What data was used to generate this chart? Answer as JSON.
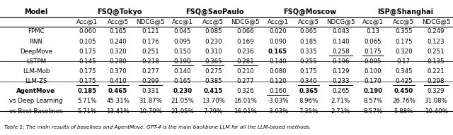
{
  "dataset_headers": [
    "FSQ@Tokyo",
    "FSQ@SaoPaulo",
    "FSQ@Moscow",
    "ISP@Shanghai"
  ],
  "rows": [
    {
      "model": "FPMC",
      "vals": [
        "0.060",
        "0.165",
        "0.121",
        "0.045",
        "0.085",
        "0.066",
        "0.020",
        "0.065",
        "0.043",
        "0.13",
        "0.355",
        "0.249"
      ],
      "bold_model": false,
      "bold_vals": [],
      "underline_vals": [],
      "group": 0
    },
    {
      "model": "RNN",
      "vals": [
        "0.105",
        "0.240",
        "0.176",
        "0.095",
        "0.230",
        "0.169",
        "0.090",
        "0.185",
        "0.140",
        "0.065",
        "0.175",
        "0.123"
      ],
      "bold_model": false,
      "bold_vals": [],
      "underline_vals": [],
      "group": 0
    },
    {
      "model": "DeepMove",
      "vals": [
        "0.175",
        "0.320",
        "0.251",
        "0.150",
        "0.310",
        "0.236",
        "0.165",
        "0.335",
        "0.258",
        "0.175",
        "0.320",
        "0.251"
      ],
      "bold_model": false,
      "bold_vals": [
        6
      ],
      "underline_vals": [
        8,
        9
      ],
      "group": 0
    },
    {
      "model": "LSTPM",
      "vals": [
        "0.145",
        "0.280",
        "0.218",
        "0.190",
        "0.365",
        "0.281",
        "0.140",
        "0.255",
        "0.196",
        "0.095",
        "0.17",
        "0.135"
      ],
      "bold_model": false,
      "bold_vals": [],
      "underline_vals": [
        3,
        4,
        5
      ],
      "group": 0
    },
    {
      "model": "LLM-Mob",
      "vals": [
        "0.175",
        "0.370",
        "0.277",
        "0.140",
        "0.275",
        "0.210",
        "0.080",
        "0.175",
        "0.129",
        "0.100",
        "0.345",
        "0.221"
      ],
      "bold_model": false,
      "bold_vals": [],
      "underline_vals": [],
      "group": 1
    },
    {
      "model": "LLM-ZS",
      "vals": [
        "0.175",
        "0.410",
        "0.299",
        "0.165",
        "0.385",
        "0.277",
        "0.120",
        "0.340",
        "0.233",
        "0.170",
        "0.425",
        "0.298"
      ],
      "bold_model": false,
      "bold_vals": [],
      "underline_vals": [
        0,
        1,
        2,
        7,
        8,
        10,
        11
      ],
      "group": 1
    },
    {
      "model": "AgentMove",
      "vals": [
        "0.185",
        "0.465",
        "0.331",
        "0.230",
        "0.415",
        "0.326",
        "0.160",
        "0.365",
        "0.265",
        "0.190",
        "0.450",
        "0.329"
      ],
      "bold_model": true,
      "bold_vals": [
        0,
        1,
        3,
        4,
        7,
        9,
        10
      ],
      "underline_vals": [
        6
      ],
      "group": 2
    },
    {
      "model": "vs Deep Learning",
      "vals": [
        "5.71%",
        "45.31%",
        "31.87%",
        "21.05%",
        "13.70%",
        "16.01%",
        "-3.03%",
        "8.96%",
        "2.71%",
        "8.57%",
        "26.76%",
        "31.08%"
      ],
      "bold_model": false,
      "bold_vals": [],
      "underline_vals": [],
      "group": 2
    },
    {
      "model": "vs Best Baselines",
      "vals": [
        "5.71%",
        "13.41%",
        "10.70%",
        "21.05%",
        "7.79%",
        "16.01%",
        "-3.03%",
        "7.35%",
        "2.71%",
        "8.57%",
        "5.88%",
        "10.40%"
      ],
      "bold_model": false,
      "bold_vals": [],
      "underline_vals": [],
      "group": 2
    }
  ],
  "caption": "Table 1: The main results of baselines and AgentMove. GPT-4 is the main backbone LLM for all the LLM-based methods.",
  "col_widths_rel": [
    1.55,
    0.66,
    0.66,
    0.73,
    0.66,
    0.66,
    0.73,
    0.66,
    0.66,
    0.73,
    0.66,
    0.66,
    0.73
  ],
  "figsize": [
    6.4,
    1.92
  ],
  "dpi": 100
}
